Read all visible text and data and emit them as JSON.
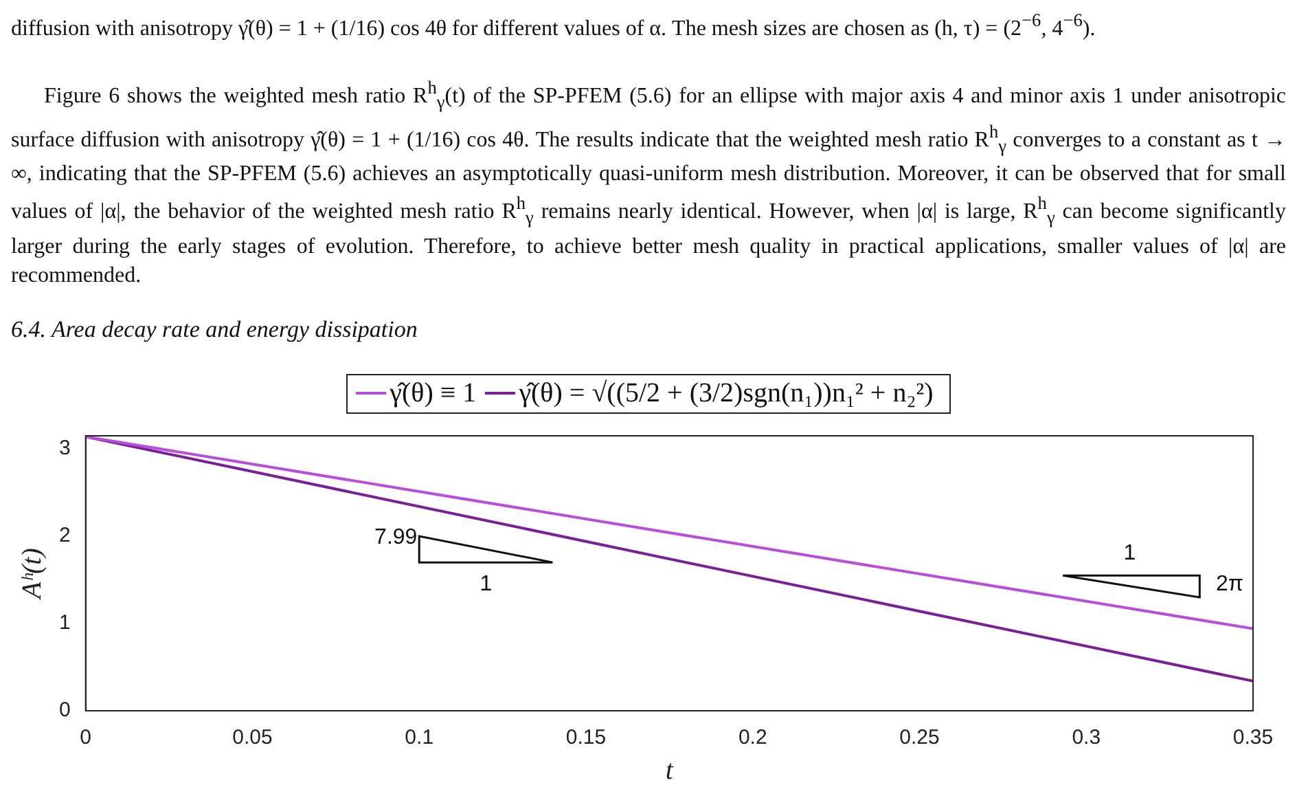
{
  "chart_data": {
    "type": "line",
    "title": "6.4. Area decay rate and energy dissipation",
    "annotations": [
      "diffusion with anisotropy γ̂(θ) = 1 + (1/16) cos 4θ for different values of α. The mesh sizes are chosen as (h, τ) = (2$^{−6}$, 4$^{−6}$).",
      "Figure 6 shows the weighted mesh ratio R$^{h}$$_{γ}$(t) of the SP-PFEM (5.6) for an ellipse with major axis 4 and minor axis 1 under anisotropic surface diffusion with anisotropy γ̂(θ) = 1 + (1/16) cos 4θ. The results indicate that the weighted mesh ratio R$^{h}$$_{γ}$ converges to a constant as t → ∞, indicating that the SP-PFEM (5.6) achieves an asymptotically quasi-uniform mesh distribution. Moreover, it can be observed that for small values of |α|, the behavior of the weighted mesh ratio R$^{h}$$_{γ}$ remains nearly identical. However, when |α| is large, R$^{h}$$_{γ}$ can become significantly larger during the early stages of evolution. Therefore, to achieve better mesh quality in practical applications, smaller values of |α| are recommended.",
      "7.99",
      "1",
      "1",
      "2π"
    ],
    "xlabel": "t",
    "ylabel": "Aʰ(t)",
    "x": [
      0,
      0.35
    ],
    "series": [
      {
        "name": "γ̂(θ) ≡ 1",
        "color": "#b84fdc",
        "values": [
          3.14,
          0.94
        ]
      },
      {
        "name": "γ̂(θ) = √((5/2 + (3/2)sgn(n₁))n₁² + n₂²)",
        "color": "#7a1e99",
        "values": [
          3.14,
          0.34
        ]
      }
    ],
    "xlim": [
      0,
      0.35
    ],
    "xticks": [
      0,
      0.05,
      0.1,
      0.15,
      0.2,
      0.25,
      0.3,
      0.35
    ],
    "ylim": [
      0,
      3.15
    ],
    "yticks": [
      0,
      1,
      2,
      3
    ],
    "legend": "top",
    "grid": false
  }
}
